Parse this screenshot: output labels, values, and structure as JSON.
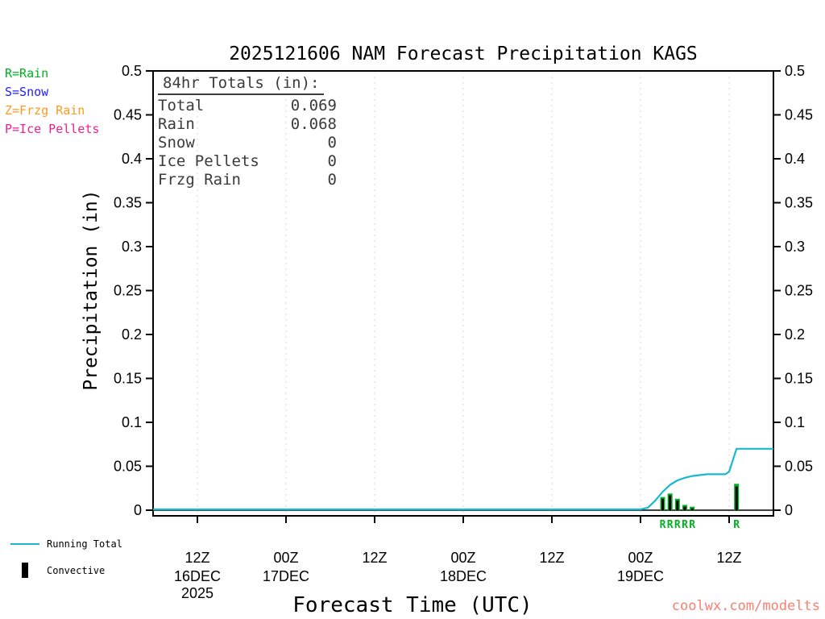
{
  "colors": {
    "rain_green": "#00b222",
    "snow_blue": "#2020ff",
    "frzg_orange": "#ff9a20",
    "pellets_pink": "#ee2090",
    "running_cyan": "#19b8cf",
    "convective_black": "#000000",
    "footer_red": "#fa8072",
    "totals_gray": "#3b3b3b"
  },
  "type_legend": {
    "items": [
      {
        "text": "R=Rain",
        "color": "#00b222"
      },
      {
        "text": "S=Snow",
        "color": "#2020ff"
      },
      {
        "text": "Z=Frzg Rain",
        "color": "#ff9a20"
      },
      {
        "text": "P=Ice Pellets",
        "color": "#ee2090"
      }
    ]
  },
  "totals_box": {
    "header": "84hr Totals (in):",
    "rows": [
      {
        "label": "Total",
        "value": "0.069"
      },
      {
        "label": "Rain",
        "value": "0.068"
      },
      {
        "label": "Snow",
        "value": "0"
      },
      {
        "label": "Ice Pellets",
        "value": "0"
      },
      {
        "label": "Frzg Rain",
        "value": "0"
      }
    ]
  },
  "series_legend": {
    "line_label": "Running Total",
    "bar_label": "Convective"
  },
  "footer": {
    "text": "coolwx.com/modelts"
  },
  "chart_data": {
    "type": "line",
    "title": "2025121606 NAM Forecast Precipitation KAGS",
    "xlabel": "Forecast Time (UTC)",
    "ylabel": "Precipitation (in)",
    "ylim": [
      0,
      0.5
    ],
    "grid": "vertical-dotted",
    "x_range_hours": [
      0,
      84
    ],
    "x_start": "06Z 16DEC 2025",
    "y_ticks": [
      {
        "v": 0,
        "label": "0"
      },
      {
        "v": 0.05,
        "label": "0.05"
      },
      {
        "v": 0.1,
        "label": "0.1"
      },
      {
        "v": 0.15,
        "label": "0.15"
      },
      {
        "v": 0.2,
        "label": "0.2"
      },
      {
        "v": 0.25,
        "label": "0.25"
      },
      {
        "v": 0.3,
        "label": "0.3"
      },
      {
        "v": 0.35,
        "label": "0.35"
      },
      {
        "v": 0.4,
        "label": "0.4"
      },
      {
        "v": 0.45,
        "label": "0.45"
      },
      {
        "v": 0.5,
        "label": "0.5"
      }
    ],
    "x_ticks": [
      {
        "hour": 6,
        "label": "12Z",
        "date": "16DEC",
        "year": "2025"
      },
      {
        "hour": 18,
        "label": "00Z",
        "date": "17DEC"
      },
      {
        "hour": 30,
        "label": "12Z"
      },
      {
        "hour": 42,
        "label": "00Z",
        "date": "18DEC"
      },
      {
        "hour": 54,
        "label": "12Z"
      },
      {
        "hour": 66,
        "label": "00Z",
        "date": "19DEC"
      },
      {
        "hour": 78,
        "label": "12Z"
      }
    ],
    "series": [
      {
        "name": "Running Total",
        "type": "line",
        "color": "#19b8cf",
        "points": [
          [
            0,
            0
          ],
          [
            66,
            0
          ],
          [
            67,
            0.002
          ],
          [
            68,
            0.01
          ],
          [
            69,
            0.02
          ],
          [
            70,
            0.028
          ],
          [
            71,
            0.033
          ],
          [
            72,
            0.036
          ],
          [
            73,
            0.038
          ],
          [
            74,
            0.039
          ],
          [
            75,
            0.04
          ],
          [
            77.5,
            0.04
          ],
          [
            78,
            0.043
          ],
          [
            79,
            0.069
          ],
          [
            84,
            0.069
          ]
        ]
      },
      {
        "name": "Convective",
        "type": "bar",
        "color": "#000000",
        "bars": [
          {
            "hour": 69,
            "total": 0.015,
            "convective": 0.013,
            "ptype": "R"
          },
          {
            "hour": 70,
            "total": 0.019,
            "convective": 0.017,
            "ptype": "R"
          },
          {
            "hour": 71,
            "total": 0.013,
            "convective": 0.011,
            "ptype": "R"
          },
          {
            "hour": 72,
            "total": 0.006,
            "convective": 0.004,
            "ptype": "R"
          },
          {
            "hour": 73,
            "total": 0.004,
            "convective": 0.002,
            "ptype": "R"
          },
          {
            "hour": 79,
            "total": 0.03,
            "convective": 0.027,
            "ptype": "R"
          }
        ]
      }
    ],
    "totals_84hr_in": {
      "total": 0.069,
      "rain": 0.068,
      "snow": 0,
      "ice_pellets": 0,
      "frzg_rain": 0
    }
  }
}
